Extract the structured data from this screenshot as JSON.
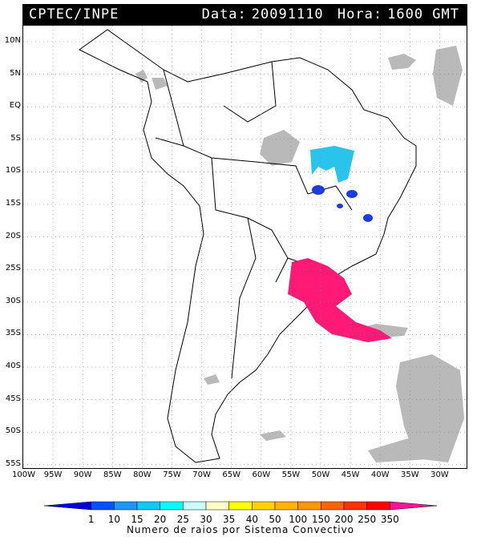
{
  "header": {
    "source": "CPTEC/INPE",
    "date_label": "Data:",
    "date_value": "20091110",
    "hour_label": "Hora:",
    "hour_value": "1600 GMT"
  },
  "lat_labels": [
    "10N",
    "5N",
    "EQ",
    "5S",
    "10S",
    "15S",
    "20S",
    "25S",
    "30S",
    "35S",
    "40S",
    "45S",
    "50S",
    "55S"
  ],
  "lon_labels": [
    "100W",
    "95W",
    "90W",
    "85W",
    "80W",
    "75W",
    "70W",
    "65W",
    "60W",
    "55W",
    "50W",
    "45W",
    "40W",
    "35W",
    "30W"
  ],
  "legend": {
    "ticks": [
      "1",
      "10",
      "15",
      "20",
      "25",
      "30",
      "35",
      "40",
      "50",
      "100",
      "150",
      "200",
      "250",
      "350"
    ],
    "colors": [
      "#0000dc",
      "#0050ff",
      "#1e96ff",
      "#12c8f0",
      "#00ffff",
      "#c8ffff",
      "#ffffc8",
      "#ffff00",
      "#ffd200",
      "#ffb400",
      "#ff9600",
      "#ff6400",
      "#ff3200",
      "#ff0000",
      "#ff1493"
    ],
    "caption": "Numero de raios por Sistema Convectivo"
  },
  "colors": {
    "cloud": "#b4b4b4",
    "lightning_high": "#ff1a75",
    "lightning_mid": "#29c3ec",
    "lightning_low": "#1e3cdc"
  }
}
